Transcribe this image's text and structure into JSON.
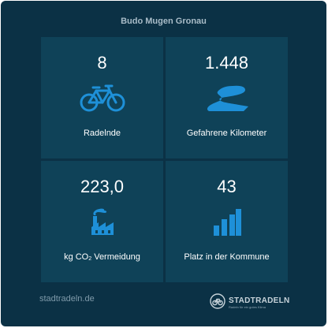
{
  "header": {
    "team_name": "Budo Mugen Gronau"
  },
  "tiles": [
    {
      "value": "8",
      "label": "Radelnde",
      "icon": "bicycle-icon"
    },
    {
      "value": "1.448",
      "label": "Gefahrene Kilometer",
      "icon": "road-icon"
    },
    {
      "value": "223,0",
      "label_prefix": "kg CO",
      "label_sub": "2",
      "label_suffix": " Vermeidung",
      "icon": "factory-icon"
    },
    {
      "value": "43",
      "label": "Platz in der Kommune",
      "icon": "ranking-bars-icon"
    }
  ],
  "footer": {
    "link_text": "stadtradeln.de",
    "logo_brand": "STADTRADELN",
    "logo_tagline": "Radeln für ein gutes Klima"
  },
  "colors": {
    "background": "#0b3145",
    "tile": "#0f4258",
    "accent": "#1e90d8"
  }
}
